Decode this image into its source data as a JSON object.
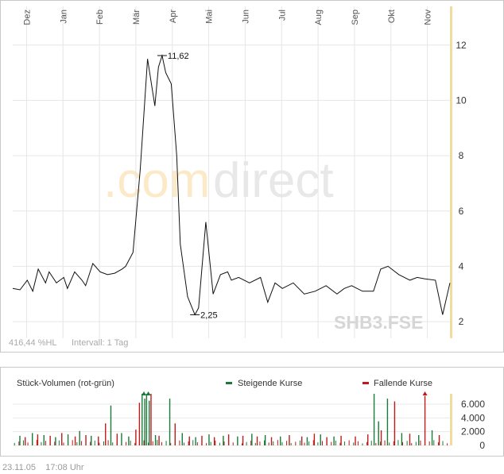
{
  "chart_data": [
    {
      "type": "line",
      "symbol": "SHB3.FSE",
      "watermark": ".comdirect",
      "months": [
        "Dez",
        "Jan",
        "Feb",
        "Mär",
        "Apr",
        "Mai",
        "Jun",
        "Jul",
        "Aug",
        "Sep",
        "Okt",
        "Nov"
      ],
      "y_ticks": [
        2,
        4,
        6,
        8,
        10,
        12
      ],
      "ylim": [
        1.4,
        13.4
      ],
      "series": [
        {
          "x": [
            0,
            0.2,
            0.4,
            0.55,
            0.7,
            0.9,
            1.0,
            1.2,
            1.4,
            1.5,
            1.7,
            1.9,
            2.0,
            2.2,
            2.4,
            2.6,
            2.8,
            3.0,
            3.1,
            3.3,
            3.5,
            3.7,
            3.9,
            4.0,
            4.1,
            4.2,
            4.35,
            4.5,
            4.6,
            4.8,
            5.0,
            5.1,
            5.3,
            5.5,
            5.7,
            5.9,
            6.0,
            6.2,
            6.5,
            6.8,
            7.0,
            7.2,
            7.4,
            7.7,
            8.0,
            8.3,
            8.6,
            8.9,
            9.1,
            9.3,
            9.6,
            9.9,
            10.1,
            10.3,
            10.6,
            10.9,
            11.1,
            11.3,
            11.6,
            11.8,
            12.0
          ],
          "values": [
            3.2,
            3.15,
            3.5,
            3.1,
            3.9,
            3.4,
            3.8,
            3.4,
            3.6,
            3.2,
            3.8,
            3.5,
            3.3,
            4.1,
            3.8,
            3.7,
            3.75,
            3.9,
            4.0,
            4.5,
            7.5,
            11.5,
            9.8,
            11.2,
            11.62,
            11.0,
            10.6,
            8.0,
            4.8,
            2.9,
            2.25,
            2.5,
            5.6,
            3.0,
            3.7,
            3.8,
            3.5,
            3.6,
            3.4,
            3.6,
            2.7,
            3.4,
            3.2,
            3.4,
            3.0,
            3.1,
            3.3,
            3.0,
            3.2,
            3.3,
            3.1,
            3.1,
            3.9,
            4.0,
            3.7,
            3.5,
            3.6,
            3.55,
            3.5,
            2.25,
            3.4
          ]
        }
      ],
      "annotations": [
        {
          "label": "11,62",
          "x": 4.1,
          "value": 11.62
        },
        {
          "label": "2,25",
          "x": 5.0,
          "value": 2.25
        }
      ],
      "info": {
        "left": "416,44 %HL",
        "interval": "Intervall: 1 Tag"
      },
      "grid": true
    },
    {
      "type": "bar",
      "title": "Stück-Volumen (rot-grün)",
      "legend": [
        {
          "label": "Steigende Kurse",
          "color": "#1a7a3a"
        },
        {
          "label": "Fallende Kurse",
          "color": "#c21a1a"
        }
      ],
      "y_ticks": [
        0,
        2000,
        4000,
        6000
      ],
      "y_tick_labels": [
        "0",
        "2.000",
        "4.000",
        "6.000"
      ],
      "ylim": [
        0,
        7500
      ],
      "x_days": 250,
      "up_bars": [
        [
          8,
          1400
        ],
        [
          22,
          1800
        ],
        [
          35,
          1500
        ],
        [
          48,
          1200
        ],
        [
          62,
          1600
        ],
        [
          75,
          2100
        ],
        [
          88,
          1400
        ],
        [
          110,
          5800
        ],
        [
          122,
          1800
        ],
        [
          130,
          1300
        ],
        [
          145,
          7500
        ],
        [
          148,
          6800
        ],
        [
          150,
          7500
        ],
        [
          153,
          6500
        ],
        [
          160,
          1500
        ],
        [
          176,
          6800
        ],
        [
          190,
          1800
        ],
        [
          205,
          1200
        ],
        [
          220,
          1600
        ],
        [
          236,
          1400
        ],
        [
          252,
          1300
        ],
        [
          268,
          1700
        ],
        [
          283,
          1500
        ],
        [
          300,
          1300
        ],
        [
          330,
          1200
        ],
        [
          345,
          1600
        ],
        [
          360,
          1300
        ],
        [
          405,
          7500
        ],
        [
          410,
          3500
        ],
        [
          420,
          6800
        ],
        [
          436,
          1800
        ],
        [
          455,
          1500
        ],
        [
          470,
          2200
        ]
      ],
      "down_bars": [
        [
          14,
          1200
        ],
        [
          28,
          1600
        ],
        [
          42,
          1400
        ],
        [
          55,
          1800
        ],
        [
          70,
          1300
        ],
        [
          82,
          1500
        ],
        [
          96,
          1300
        ],
        [
          104,
          3200
        ],
        [
          117,
          1700
        ],
        [
          138,
          2300
        ],
        [
          142,
          6200
        ],
        [
          155,
          7500
        ],
        [
          164,
          1400
        ],
        [
          182,
          3200
        ],
        [
          198,
          1300
        ],
        [
          212,
          1400
        ],
        [
          226,
          1200
        ],
        [
          242,
          1600
        ],
        [
          258,
          1400
        ],
        [
          274,
          1300
        ],
        [
          290,
          1200
        ],
        [
          310,
          1500
        ],
        [
          324,
          1300
        ],
        [
          338,
          1700
        ],
        [
          352,
          1200
        ],
        [
          368,
          1400
        ],
        [
          384,
          1300
        ],
        [
          398,
          1600
        ],
        [
          413,
          2200
        ],
        [
          428,
          6400
        ],
        [
          445,
          1700
        ],
        [
          462,
          7200
        ],
        [
          478,
          1500
        ]
      ],
      "arrows": [
        {
          "day": 147,
          "color": "#1a7a3a"
        },
        {
          "day": 152,
          "color": "#1a7a3a"
        },
        {
          "day": 462,
          "color": "#c21a1a"
        }
      ]
    }
  ],
  "footer": {
    "date": "23.11.05",
    "time": "17:08 Uhr"
  }
}
